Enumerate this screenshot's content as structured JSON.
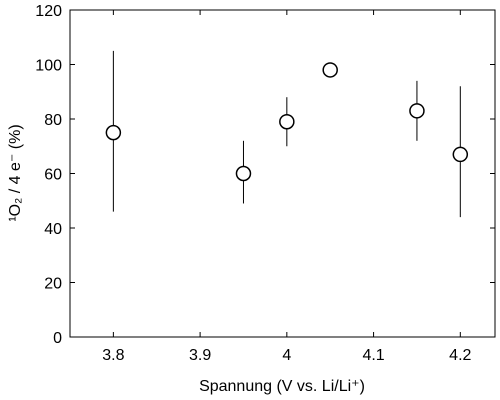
{
  "chart_data": {
    "type": "scatter",
    "xlabel": "Spannung (V vs. Li/Li⁺)",
    "ylabel": "¹O₂ / 4 e⁻ (%)",
    "xlim": [
      3.75,
      4.24
    ],
    "ylim": [
      0,
      120
    ],
    "x_ticks": [
      3.8,
      3.9,
      4.0,
      4.1,
      4.2
    ],
    "x_tick_labels": [
      "3.8",
      "3.9",
      "4",
      "4.1",
      "4.2"
    ],
    "y_ticks": [
      0,
      20,
      40,
      60,
      80,
      100,
      120
    ],
    "y_tick_labels": [
      "0",
      "20",
      "40",
      "60",
      "80",
      "100",
      "120"
    ],
    "grid": false,
    "marker": "open-circle",
    "points": [
      {
        "x": 3.8,
        "y": 75,
        "err_low": 46,
        "err_high": 105
      },
      {
        "x": 3.95,
        "y": 60,
        "err_low": 49,
        "err_high": 72
      },
      {
        "x": 4.0,
        "y": 79,
        "err_low": 70,
        "err_high": 88
      },
      {
        "x": 4.05,
        "y": 98,
        "err_low": 98,
        "err_high": 98
      },
      {
        "x": 4.15,
        "y": 83,
        "err_low": 72,
        "err_high": 94
      },
      {
        "x": 4.2,
        "y": 67,
        "err_low": 44,
        "err_high": 92
      }
    ]
  }
}
